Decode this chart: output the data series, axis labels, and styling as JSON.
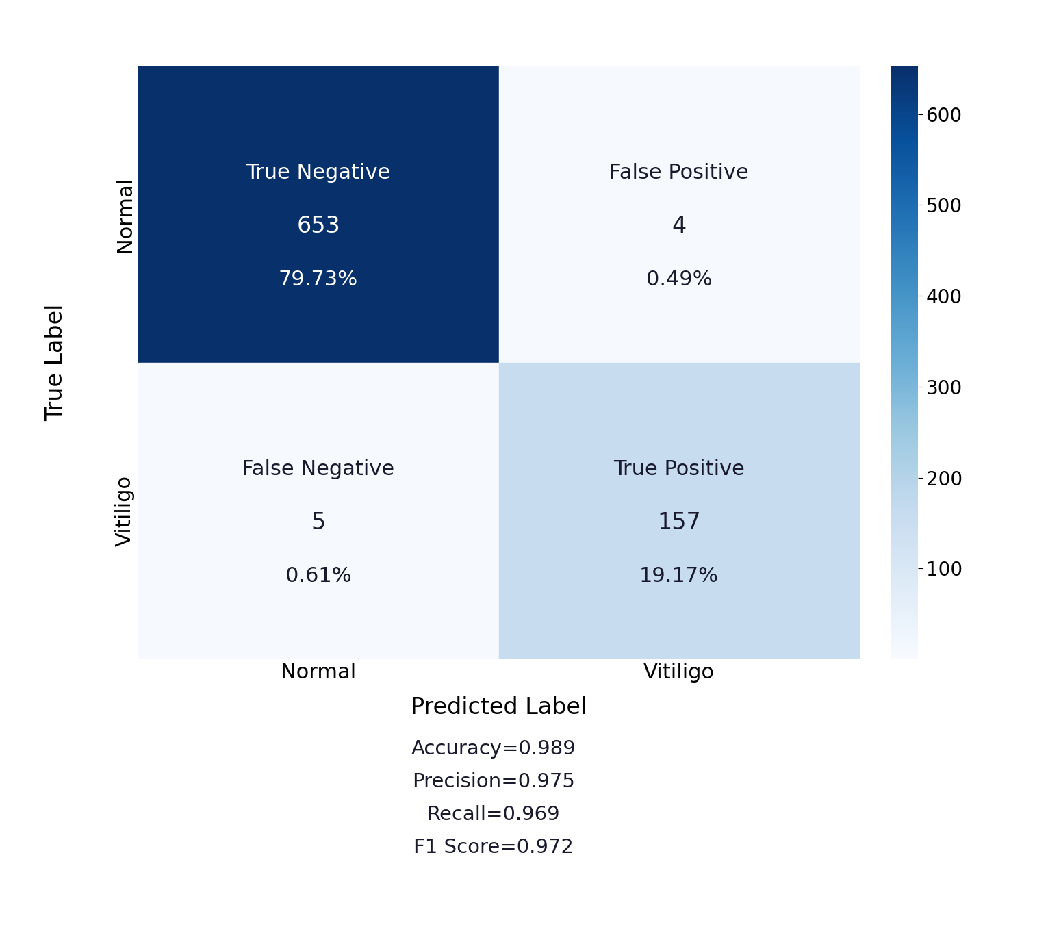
{
  "matrix": [
    [
      653,
      4
    ],
    [
      5,
      157
    ]
  ],
  "percentages": [
    [
      "79.73%",
      "0.49%"
    ],
    [
      "0.61%",
      "19.17%"
    ]
  ],
  "x_labels": [
    "Normal",
    "Vitiligo"
  ],
  "y_labels": [
    "Normal",
    "Vitiligo"
  ],
  "xlabel": "Predicted Label",
  "ylabel": "True Label",
  "cell_labels": [
    [
      "True Negative",
      "False Positive"
    ],
    [
      "False Negative",
      "True Positive"
    ]
  ],
  "accuracy": "Accuracy=0.989",
  "precision": "Precision=0.975",
  "recall": "Recall=0.969",
  "f1": "F1 Score=0.972",
  "colormap": "Blues",
  "vmin": 0,
  "vmax": 653,
  "cbar_ticks": [
    100,
    200,
    300,
    400,
    500,
    600
  ],
  "background_color": "#ffffff",
  "label_fontsize": 24,
  "tick_fontsize": 22,
  "cell_name_fontsize": 22,
  "cell_count_fontsize": 24,
  "cell_pct_fontsize": 22,
  "metrics_fontsize": 21
}
